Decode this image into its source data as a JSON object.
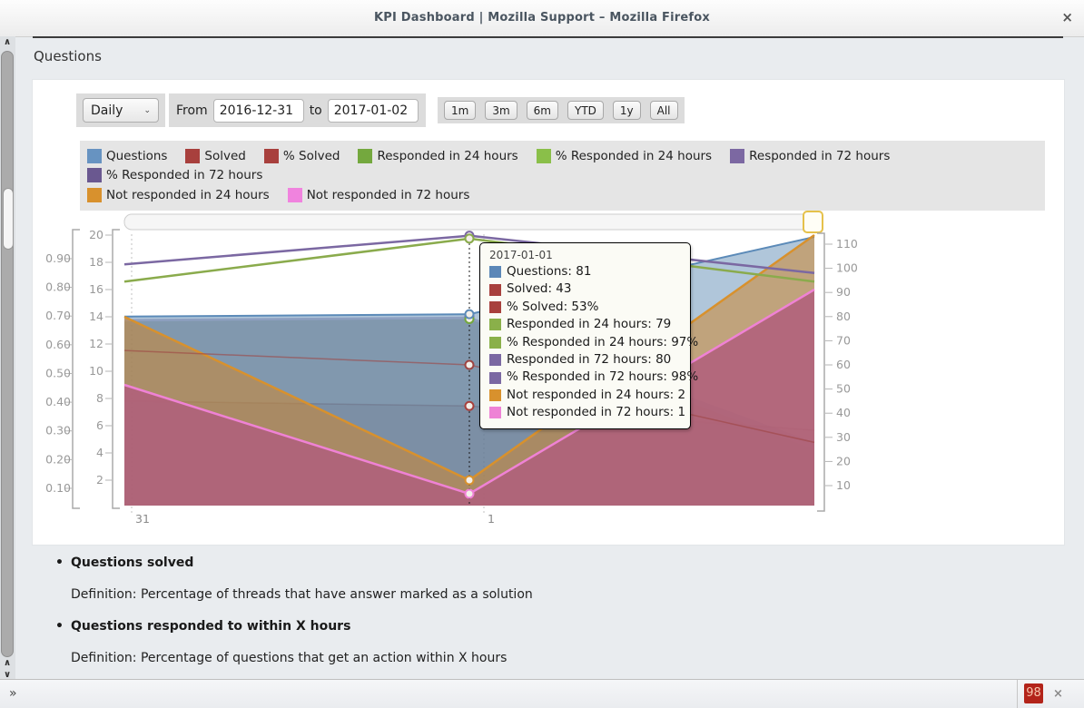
{
  "window": {
    "title": "KPI Dashboard | Mozilla Support – Mozilla Firefox",
    "close_label": "×"
  },
  "page": {
    "heading": "Questions"
  },
  "controls": {
    "interval_select": {
      "value": "Daily",
      "chevron": "⌄"
    },
    "from_label": "From",
    "from_value": "2016-12-31",
    "to_label": "to",
    "to_value": "2017-01-02",
    "range_buttons": [
      "1m",
      "3m",
      "6m",
      "YTD",
      "1y",
      "All"
    ]
  },
  "legend": {
    "items": [
      {
        "label": "Questions",
        "color": "#6793c1"
      },
      {
        "label": "Solved",
        "color": "#a8403d"
      },
      {
        "label": "% Solved",
        "color": "#a8403d"
      },
      {
        "label": "Responded in 24 hours",
        "color": "#74a83e"
      },
      {
        "label": "% Responded in 24 hours",
        "color": "#8abf49"
      },
      {
        "label": "Responded in 72 hours",
        "color": "#7c68a2"
      },
      {
        "label": "% Responded in 72 hours",
        "color": "#6a5890"
      },
      {
        "label": "Not responded in 24 hours",
        "color": "#d8912d"
      },
      {
        "label": "Not responded in 72 hours",
        "color": "#f083de"
      }
    ]
  },
  "chart_data": {
    "type": "area",
    "x_categories": [
      "2016-12-31",
      "2017-01-01",
      "2017-01-02"
    ],
    "x_tick_labels": [
      "31",
      "1"
    ],
    "series": [
      {
        "name": "Questions",
        "type": "area",
        "axis": "right",
        "color": "#5b8ab8",
        "values": [
          80,
          81,
          113
        ]
      },
      {
        "name": "Solved",
        "type": "area",
        "axis": "right",
        "color": "#a8403d",
        "values": [
          45,
          43,
          33
        ]
      },
      {
        "name": "% Solved",
        "type": "line",
        "axis": "left_pct",
        "color": "#9e4442",
        "values": [
          0.58,
          0.53,
          0.26
        ]
      },
      {
        "name": "Responded in 24 hours",
        "type": "area",
        "axis": "right",
        "color": "#74a83e",
        "values": [
          78,
          79,
          25
        ]
      },
      {
        "name": "% Responded in 24 hours",
        "type": "line",
        "axis": "left_pct",
        "color": "#8aab4c",
        "values": [
          0.82,
          0.97,
          0.82
        ]
      },
      {
        "name": "Responded in 72 hours",
        "type": "area",
        "axis": "right",
        "color": "#7c68a2",
        "values": [
          79,
          80,
          28
        ]
      },
      {
        "name": "% Responded in 72 hours",
        "type": "line",
        "axis": "left_pct",
        "color": "#7b68a2",
        "values": [
          0.88,
          0.98,
          0.85
        ]
      },
      {
        "name": "Not responded in 24 hours",
        "type": "area",
        "axis": "left_count",
        "color": "#d8912d",
        "values": [
          14,
          2,
          20
        ]
      },
      {
        "name": "Not responded in 72 hours",
        "type": "area",
        "axis": "left_count",
        "color": "#ef82d5",
        "values": [
          9,
          1,
          16
        ]
      }
    ],
    "axes": {
      "left_pct": {
        "ticks": [
          0.9,
          0.8,
          0.7,
          0.6,
          0.5,
          0.4,
          0.3,
          0.2,
          0.1
        ],
        "labels": [
          "0.90",
          "0.80",
          "0.70",
          "0.60",
          "0.50",
          "0.40",
          "0.30",
          "0.20",
          "0.10"
        ]
      },
      "left_count": {
        "ticks": [
          20,
          18,
          16,
          14,
          12,
          10,
          8,
          6,
          4,
          2
        ],
        "labels": [
          "20",
          "18",
          "16",
          "14",
          "12",
          "10",
          "8",
          "6",
          "4",
          "2"
        ]
      },
      "right": {
        "ticks": [
          110,
          100,
          90,
          80,
          70,
          60,
          50,
          40,
          30,
          20,
          10
        ],
        "labels": [
          "110",
          "100",
          "90",
          "80",
          "70",
          "60",
          "50",
          "40",
          "30",
          "20",
          "10"
        ]
      }
    },
    "legend_position": "top",
    "grid": "off",
    "hover_index": 1
  },
  "tooltip": {
    "date": "2017-01-01",
    "rows": [
      {
        "label": "Questions",
        "value": "81",
        "color": "#5b87b7"
      },
      {
        "label": "Solved",
        "value": "43",
        "color": "#a8403d"
      },
      {
        "label": "% Solved",
        "value": "53%",
        "color": "#a8403d"
      },
      {
        "label": "Responded in 24 hours",
        "value": "79",
        "color": "#8ab04a"
      },
      {
        "label": "% Responded in 24 hours",
        "value": "97%",
        "color": "#8ab04a"
      },
      {
        "label": "Responded in 72 hours",
        "value": "80",
        "color": "#7b68a2"
      },
      {
        "label": "% Responded in 72 hours",
        "value": "98%",
        "color": "#7b68a2"
      },
      {
        "label": "Not responded in 24 hours",
        "value": "2",
        "color": "#d8912d"
      },
      {
        "label": "Not responded in 72 hours",
        "value": "1",
        "color": "#ee82d5"
      }
    ]
  },
  "definitions": [
    {
      "term": "Questions solved",
      "definition": "Definition: Percentage of threads that have answer marked as a solution"
    },
    {
      "term": "Questions responded to within X hours",
      "definition": "Definition: Percentage of questions that get an action within X hours"
    }
  ],
  "findbar": {
    "expander": "»",
    "counter": "98",
    "close_label": "×"
  },
  "scroll_icons": {
    "up": "∧",
    "down": "∨"
  }
}
